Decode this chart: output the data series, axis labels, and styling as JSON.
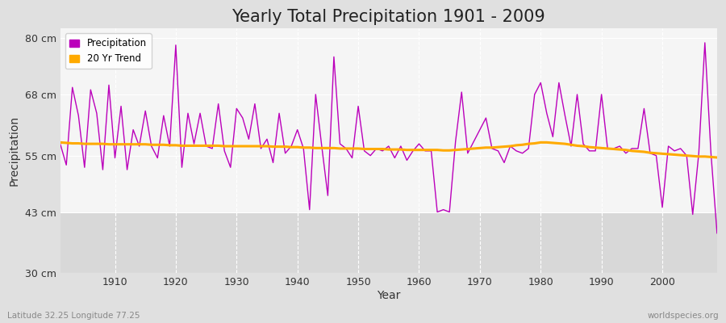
{
  "title": "Yearly Total Precipitation 1901 - 2009",
  "xlabel": "Year",
  "ylabel": "Precipitation",
  "subtitle": "Latitude 32.25 Longitude 77.25",
  "watermark": "worldspecies.org",
  "years": [
    1901,
    1902,
    1903,
    1904,
    1905,
    1906,
    1907,
    1908,
    1909,
    1910,
    1911,
    1912,
    1913,
    1914,
    1915,
    1916,
    1917,
    1918,
    1919,
    1920,
    1921,
    1922,
    1923,
    1924,
    1925,
    1926,
    1927,
    1928,
    1929,
    1930,
    1931,
    1932,
    1933,
    1934,
    1935,
    1936,
    1937,
    1938,
    1939,
    1940,
    1941,
    1942,
    1943,
    1944,
    1945,
    1946,
    1947,
    1948,
    1949,
    1950,
    1951,
    1952,
    1953,
    1954,
    1955,
    1956,
    1957,
    1958,
    1959,
    1960,
    1961,
    1962,
    1963,
    1964,
    1965,
    1966,
    1967,
    1968,
    1969,
    1970,
    1971,
    1972,
    1973,
    1974,
    1975,
    1976,
    1977,
    1978,
    1979,
    1980,
    1981,
    1982,
    1983,
    1984,
    1985,
    1986,
    1987,
    1988,
    1989,
    1990,
    1991,
    1992,
    1993,
    1994,
    1995,
    1996,
    1997,
    1998,
    1999,
    2000,
    2001,
    2002,
    2003,
    2004,
    2005,
    2006,
    2007,
    2008,
    2009
  ],
  "precip": [
    57.5,
    53.0,
    69.5,
    63.5,
    52.5,
    69.0,
    64.0,
    52.0,
    70.0,
    54.5,
    65.5,
    52.0,
    60.5,
    57.0,
    64.5,
    57.0,
    54.5,
    63.5,
    57.0,
    78.5,
    52.5,
    64.0,
    57.5,
    64.0,
    57.0,
    56.5,
    66.0,
    56.0,
    52.5,
    65.0,
    63.0,
    58.5,
    66.0,
    56.5,
    58.5,
    53.5,
    64.0,
    55.5,
    57.0,
    60.5,
    56.5,
    43.5,
    68.0,
    57.0,
    46.5,
    76.0,
    57.5,
    56.5,
    54.5,
    65.5,
    56.0,
    55.0,
    56.5,
    56.0,
    57.0,
    54.5,
    57.0,
    54.0,
    56.0,
    57.5,
    56.0,
    56.0,
    43.0,
    43.5,
    43.0,
    58.0,
    68.5,
    55.5,
    58.0,
    60.5,
    63.0,
    56.5,
    56.0,
    53.5,
    57.0,
    56.0,
    55.5,
    56.5,
    68.0,
    70.5,
    64.0,
    59.0,
    70.5,
    63.5,
    57.0,
    68.0,
    57.5,
    56.0,
    56.0,
    68.0,
    56.5,
    56.5,
    57.0,
    55.5,
    56.5,
    56.5,
    65.0,
    55.5,
    55.0,
    44.0,
    57.0,
    56.0,
    56.5,
    55.0,
    42.5,
    55.5,
    79.0,
    55.5,
    38.5
  ],
  "trend": [
    57.8,
    57.7,
    57.6,
    57.6,
    57.5,
    57.5,
    57.5,
    57.5,
    57.4,
    57.4,
    57.4,
    57.4,
    57.4,
    57.4,
    57.4,
    57.3,
    57.3,
    57.3,
    57.2,
    57.2,
    57.1,
    57.1,
    57.1,
    57.1,
    57.1,
    57.1,
    57.1,
    57.0,
    57.0,
    57.0,
    57.0,
    57.0,
    57.0,
    57.0,
    57.0,
    56.9,
    56.9,
    56.9,
    56.8,
    56.8,
    56.7,
    56.7,
    56.6,
    56.6,
    56.6,
    56.6,
    56.5,
    56.5,
    56.5,
    56.5,
    56.4,
    56.4,
    56.4,
    56.4,
    56.3,
    56.3,
    56.3,
    56.2,
    56.2,
    56.2,
    56.2,
    56.2,
    56.2,
    56.1,
    56.1,
    56.2,
    56.3,
    56.4,
    56.5,
    56.6,
    56.7,
    56.7,
    56.8,
    56.9,
    57.0,
    57.2,
    57.3,
    57.5,
    57.6,
    57.8,
    57.8,
    57.7,
    57.6,
    57.5,
    57.3,
    57.1,
    57.0,
    56.8,
    56.7,
    56.6,
    56.5,
    56.4,
    56.3,
    56.2,
    56.0,
    55.9,
    55.8,
    55.6,
    55.5,
    55.4,
    55.3,
    55.2,
    55.1,
    55.0,
    54.9,
    54.8,
    54.8,
    54.7,
    54.6
  ],
  "precip_color": "#bb00bb",
  "trend_color": "#ffaa00",
  "bg_color": "#e0e0e0",
  "plot_bg_upper_color": "#f5f5f5",
  "plot_bg_lower_color": "#d8d8d8",
  "grid_color": "#ffffff",
  "ylim": [
    30,
    82
  ],
  "lower_band_y": 43,
  "yticks": [
    30,
    43,
    55,
    68,
    80
  ],
  "ytick_labels": [
    "30 cm",
    "43 cm",
    "55 cm",
    "68 cm",
    "80 cm"
  ],
  "xlim": [
    1901,
    2009
  ],
  "xticks": [
    1910,
    1920,
    1930,
    1940,
    1950,
    1960,
    1970,
    1980,
    1990,
    2000
  ],
  "legend_loc": "upper left",
  "title_fontsize": 15,
  "label_fontsize": 10,
  "tick_fontsize": 9
}
